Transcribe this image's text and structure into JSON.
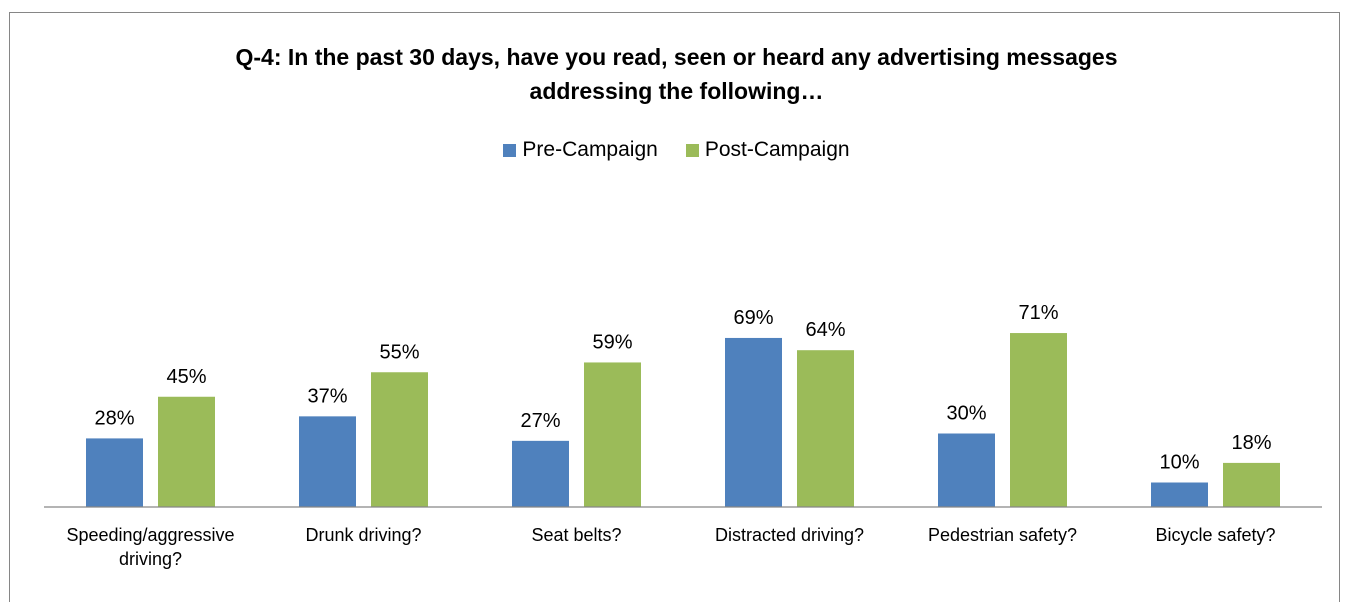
{
  "chart_data": {
    "type": "bar",
    "title": "Q-4: In the past 30 days, have you read, seen or heard any advertising messages addressing the following…",
    "title_lines": [
      "Q-4: In the past 30 days, have you read, seen or heard any advertising messages",
      "addressing the following…"
    ],
    "categories": [
      "Speeding/aggressive driving?",
      "Drunk driving?",
      "Seat belts?",
      "Distracted driving?",
      "Pedestrian safety?",
      "Bicycle safety?"
    ],
    "category_lines": [
      [
        "Speeding/aggressive",
        "driving?"
      ],
      [
        "Drunk driving?"
      ],
      [
        "Seat belts?"
      ],
      [
        "Distracted driving?"
      ],
      [
        "Pedestrian safety?"
      ],
      [
        "Bicycle safety?"
      ]
    ],
    "series": [
      {
        "name": "Pre-Campaign",
        "color": "#4f81bd",
        "values": [
          28,
          37,
          27,
          69,
          30,
          10
        ],
        "labels": [
          "28%",
          "37%",
          "27%",
          "69%",
          "30%",
          "10%"
        ]
      },
      {
        "name": "Post-Campaign",
        "color": "#9bbb59",
        "values": [
          45,
          55,
          59,
          64,
          71,
          18
        ],
        "labels": [
          "45%",
          "55%",
          "59%",
          "64%",
          "71%",
          "18%"
        ]
      }
    ],
    "ylim": [
      0,
      80
    ],
    "grid": false,
    "legend_position": "top-center"
  }
}
